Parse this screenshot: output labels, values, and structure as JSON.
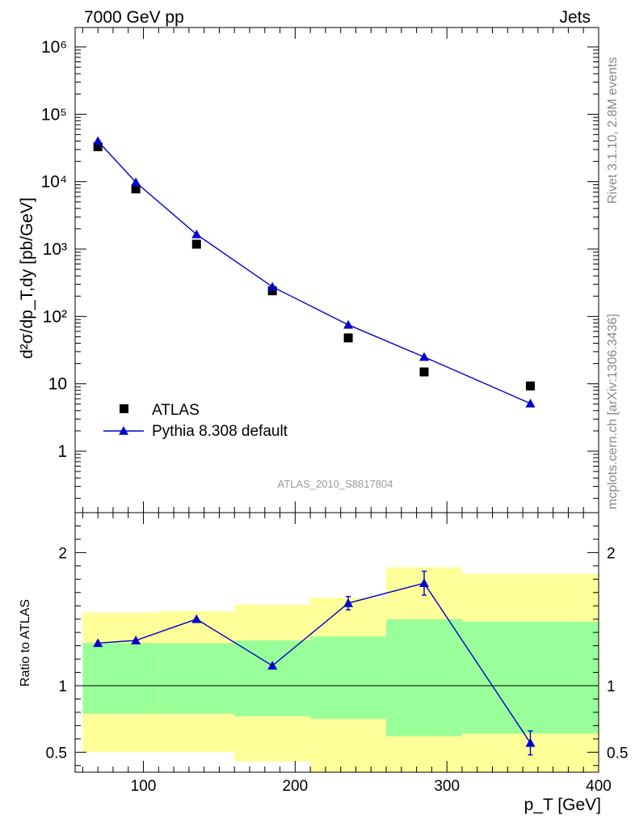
{
  "header": {
    "left": "7000 GeV pp",
    "right": "Jets"
  },
  "side_labels": {
    "rivet": "Rivet 3.1.10,  2.8M events",
    "mcplots": "mcplots.cern.ch [arXiv:1306.3436]"
  },
  "analysis_id": "ATLAS_2010_S8817804",
  "chart_data": [
    {
      "type": "scatter",
      "panel": "main",
      "ylabel": "d²σ/dp_T,dy [pb/GeV]",
      "yscale": "log",
      "ylim": [
        0.15,
        1800000
      ],
      "xlim": [
        55,
        400
      ],
      "y_tick_labels": [
        "1",
        "10",
        "10²",
        "10³",
        "10⁴",
        "10⁵",
        "10⁶"
      ],
      "legend_position": "lower-left",
      "series": [
        {
          "name": "ATLAS",
          "marker": "square",
          "color": "#000000",
          "x": [
            70,
            95,
            135,
            185,
            235,
            285,
            355
          ],
          "y": [
            33000,
            7800,
            1180,
            240,
            48,
            15,
            9.3
          ]
        },
        {
          "name": "Pythia 8.308 default",
          "marker": "triangle",
          "line": true,
          "color": "#0000cc",
          "x": [
            70,
            95,
            135,
            185,
            235,
            285,
            355
          ],
          "y": [
            40000,
            9800,
            1650,
            275,
            75,
            25,
            5.1
          ]
        }
      ]
    },
    {
      "type": "line",
      "panel": "ratio",
      "ylabel": "Ratio to ATLAS",
      "xlabel": "p_T [GeV]",
      "ylim": [
        0.35,
        2.3
      ],
      "xlim": [
        55,
        400
      ],
      "x_ticks": [
        100,
        200,
        300,
        400
      ],
      "y_ticks": [
        0.5,
        1,
        2
      ],
      "reference_line": 1,
      "bands": {
        "colors": {
          "outer": "#ffff99",
          "inner": "#99ff99"
        },
        "bins": [
          {
            "x": [
              60,
              110
            ],
            "outer": [
              0.5,
              1.55
            ],
            "inner": [
              0.79,
              1.32
            ]
          },
          {
            "x": [
              110,
              160
            ],
            "outer": [
              0.5,
              1.56
            ],
            "inner": [
              0.79,
              1.32
            ]
          },
          {
            "x": [
              160,
              210
            ],
            "outer": [
              0.43,
              1.61
            ],
            "inner": [
              0.77,
              1.34
            ]
          },
          {
            "x": [
              210,
              260
            ],
            "outer": [
              0.35,
              1.66
            ],
            "inner": [
              0.75,
              1.37
            ]
          },
          {
            "x": [
              260,
              310
            ],
            "outer": [
              0.35,
              1.89
            ],
            "inner": [
              0.62,
              1.5
            ]
          },
          {
            "x": [
              310,
              400
            ],
            "outer": [
              0.35,
              1.84
            ],
            "inner": [
              0.64,
              1.48
            ]
          }
        ]
      },
      "series": [
        {
          "name": "Pythia 8.308 default",
          "color": "#0000cc",
          "x": [
            70,
            95,
            135,
            185,
            235,
            285,
            355
          ],
          "y": [
            1.32,
            1.34,
            1.5,
            1.15,
            1.62,
            1.77,
            0.57
          ],
          "err": [
            0.01,
            0.01,
            0.01,
            0.01,
            0.05,
            0.09,
            0.09
          ]
        }
      ]
    }
  ]
}
